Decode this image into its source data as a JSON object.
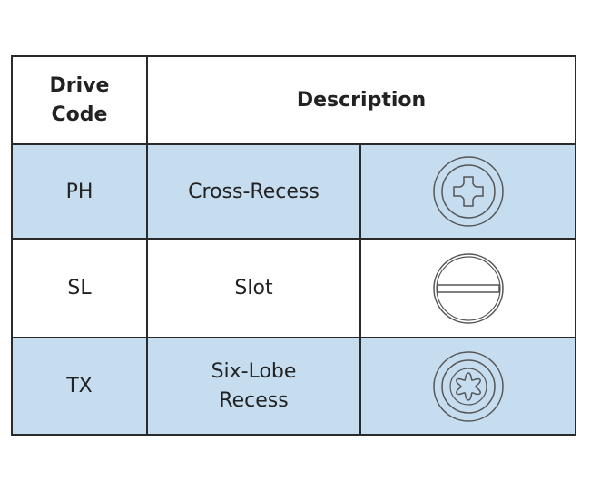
{
  "table": {
    "header": [
      "Drive Code",
      "Description"
    ],
    "rows": [
      [
        "PH",
        "Cross-Recess"
      ],
      [
        "SL",
        "Slot"
      ],
      [
        "TX",
        "Six-Lobe Recess"
      ]
    ]
  }
}
